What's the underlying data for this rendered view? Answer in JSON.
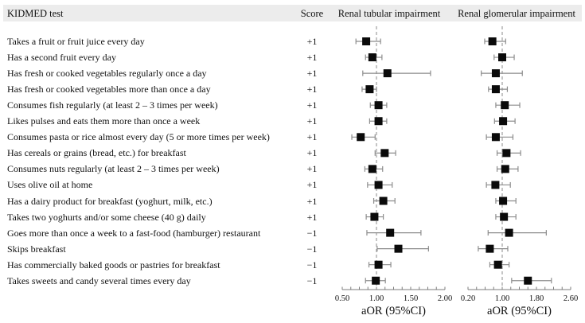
{
  "figure": {
    "header": {
      "item_col": "KIDMED test",
      "score_col": "Score",
      "panel1_col": "Renal tubular impairment",
      "panel2_col": "Renal glomerular impairment"
    }
  },
  "chart_data": {
    "type": "forest",
    "title": "",
    "grid": false,
    "legend": "none",
    "panels": [
      {
        "name": "Renal tubular impairment",
        "xlabel": "aOR (95%CI)",
        "xlim": [
          0.5,
          2.0
        ],
        "major_ticks": [
          0.5,
          1.0,
          1.5,
          2.0
        ],
        "tick_labels": [
          "0.50",
          "1.00",
          "1.50",
          "2.00"
        ],
        "minor_step": 0.125,
        "ref_line": 1.0,
        "series_key": "tubular"
      },
      {
        "name": "Renal glomerular impairment",
        "xlabel": "aOR (95%CI)",
        "xlim": [
          0.2,
          2.6
        ],
        "major_ticks": [
          0.2,
          1.0,
          1.8,
          2.6
        ],
        "tick_labels": [
          "0.20",
          "1.00",
          "1.80",
          "2.60"
        ],
        "minor_step": 0.2,
        "ref_line": 1.0,
        "series_key": "glomerular"
      }
    ],
    "rows": [
      {
        "label": "Takes a fruit or fruit juice every day",
        "score": "+1",
        "tubular": {
          "or": 0.85,
          "lo": 0.7,
          "hi": 1.06
        },
        "glomerular": {
          "or": 0.77,
          "lo": 0.59,
          "hi": 1.08
        }
      },
      {
        "label": "Has a second fruit every day",
        "score": "+1",
        "tubular": {
          "or": 0.94,
          "lo": 0.84,
          "hi": 1.08
        },
        "glomerular": {
          "or": 1.0,
          "lo": 0.81,
          "hi": 1.28
        }
      },
      {
        "label": "Has fresh or cooked vegetables regularly once a day",
        "score": "+1",
        "tubular": {
          "or": 1.16,
          "lo": 0.8,
          "hi": 1.79
        },
        "glomerular": {
          "or": 0.85,
          "lo": 0.51,
          "hi": 1.47
        }
      },
      {
        "label": "Has fresh or cooked vegetables more than once a day",
        "score": "+1",
        "tubular": {
          "or": 0.9,
          "lo": 0.79,
          "hi": 1.0
        },
        "glomerular": {
          "or": 0.85,
          "lo": 0.68,
          "hi": 1.12
        }
      },
      {
        "label": "Consumes fish regularly (at least 2 – 3 times per week)",
        "score": "+1",
        "tubular": {
          "or": 1.03,
          "lo": 0.91,
          "hi": 1.15
        },
        "glomerular": {
          "or": 1.06,
          "lo": 0.85,
          "hi": 1.41
        }
      },
      {
        "label": "Likes pulses and eats them more than once a week",
        "score": "+1",
        "tubular": {
          "or": 1.03,
          "lo": 0.9,
          "hi": 1.15
        },
        "glomerular": {
          "or": 1.02,
          "lo": 0.82,
          "hi": 1.3
        }
      },
      {
        "label": "Consumes pasta or rice almost every day (5 or more times per week)",
        "score": "+1",
        "tubular": {
          "or": 0.77,
          "lo": 0.64,
          "hi": 0.98
        },
        "glomerular": {
          "or": 0.85,
          "lo": 0.63,
          "hi": 1.25
        }
      },
      {
        "label": "Has cereals or grains (bread, etc.) for breakfast",
        "score": "+1",
        "tubular": {
          "or": 1.12,
          "lo": 0.98,
          "hi": 1.28
        },
        "glomerular": {
          "or": 1.1,
          "lo": 0.88,
          "hi": 1.43
        }
      },
      {
        "label": "Consumes nuts regularly (at least 2 – 3 times per week)",
        "score": "+1",
        "tubular": {
          "or": 0.94,
          "lo": 0.83,
          "hi": 1.09
        },
        "glomerular": {
          "or": 1.07,
          "lo": 0.88,
          "hi": 1.37
        }
      },
      {
        "label": "Uses olive oil at home",
        "score": "+1",
        "tubular": {
          "or": 1.03,
          "lo": 0.87,
          "hi": 1.23
        },
        "glomerular": {
          "or": 0.84,
          "lo": 0.63,
          "hi": 1.19
        }
      },
      {
        "label": "Has a dairy product for breakfast (yoghurt, milk, etc.)",
        "score": "+1",
        "tubular": {
          "or": 1.1,
          "lo": 0.96,
          "hi": 1.27
        },
        "glomerular": {
          "or": 1.02,
          "lo": 0.85,
          "hi": 1.32
        }
      },
      {
        "label": "Takes two yoghurts and/or some cheese (40 g) daily",
        "score": "+1",
        "tubular": {
          "or": 0.97,
          "lo": 0.85,
          "hi": 1.1
        },
        "glomerular": {
          "or": 1.04,
          "lo": 0.85,
          "hi": 1.32
        }
      },
      {
        "label": "Goes more than once a week to a fast-food (hamburger) restaurant",
        "score": "−1",
        "tubular": {
          "or": 1.2,
          "lo": 0.86,
          "hi": 1.65
        },
        "glomerular": {
          "or": 1.16,
          "lo": 0.67,
          "hi": 2.03
        }
      },
      {
        "label": "Skips breakfast",
        "score": "−1",
        "tubular": {
          "or": 1.32,
          "lo": 1.01,
          "hi": 1.76
        },
        "glomerular": {
          "or": 0.71,
          "lo": 0.44,
          "hi": 1.13
        }
      },
      {
        "label": "Has commercially baked goods or pastries for breakfast",
        "score": "−1",
        "tubular": {
          "or": 1.03,
          "lo": 0.89,
          "hi": 1.21
        },
        "glomerular": {
          "or": 0.9,
          "lo": 0.71,
          "hi": 1.16
        }
      },
      {
        "label": "Takes sweets and candy several times every day",
        "score": "−1",
        "tubular": {
          "or": 0.99,
          "lo": 0.84,
          "hi": 1.13
        },
        "glomerular": {
          "or": 1.6,
          "lo": 1.22,
          "hi": 2.15
        }
      }
    ]
  },
  "colors": {
    "marker": "#0a0a0a",
    "ci": "#8c8c8c",
    "ref_line": "#9e9e9e",
    "axis": "#7d7d7d",
    "header_bg": "#ececec",
    "text": "#111111"
  }
}
